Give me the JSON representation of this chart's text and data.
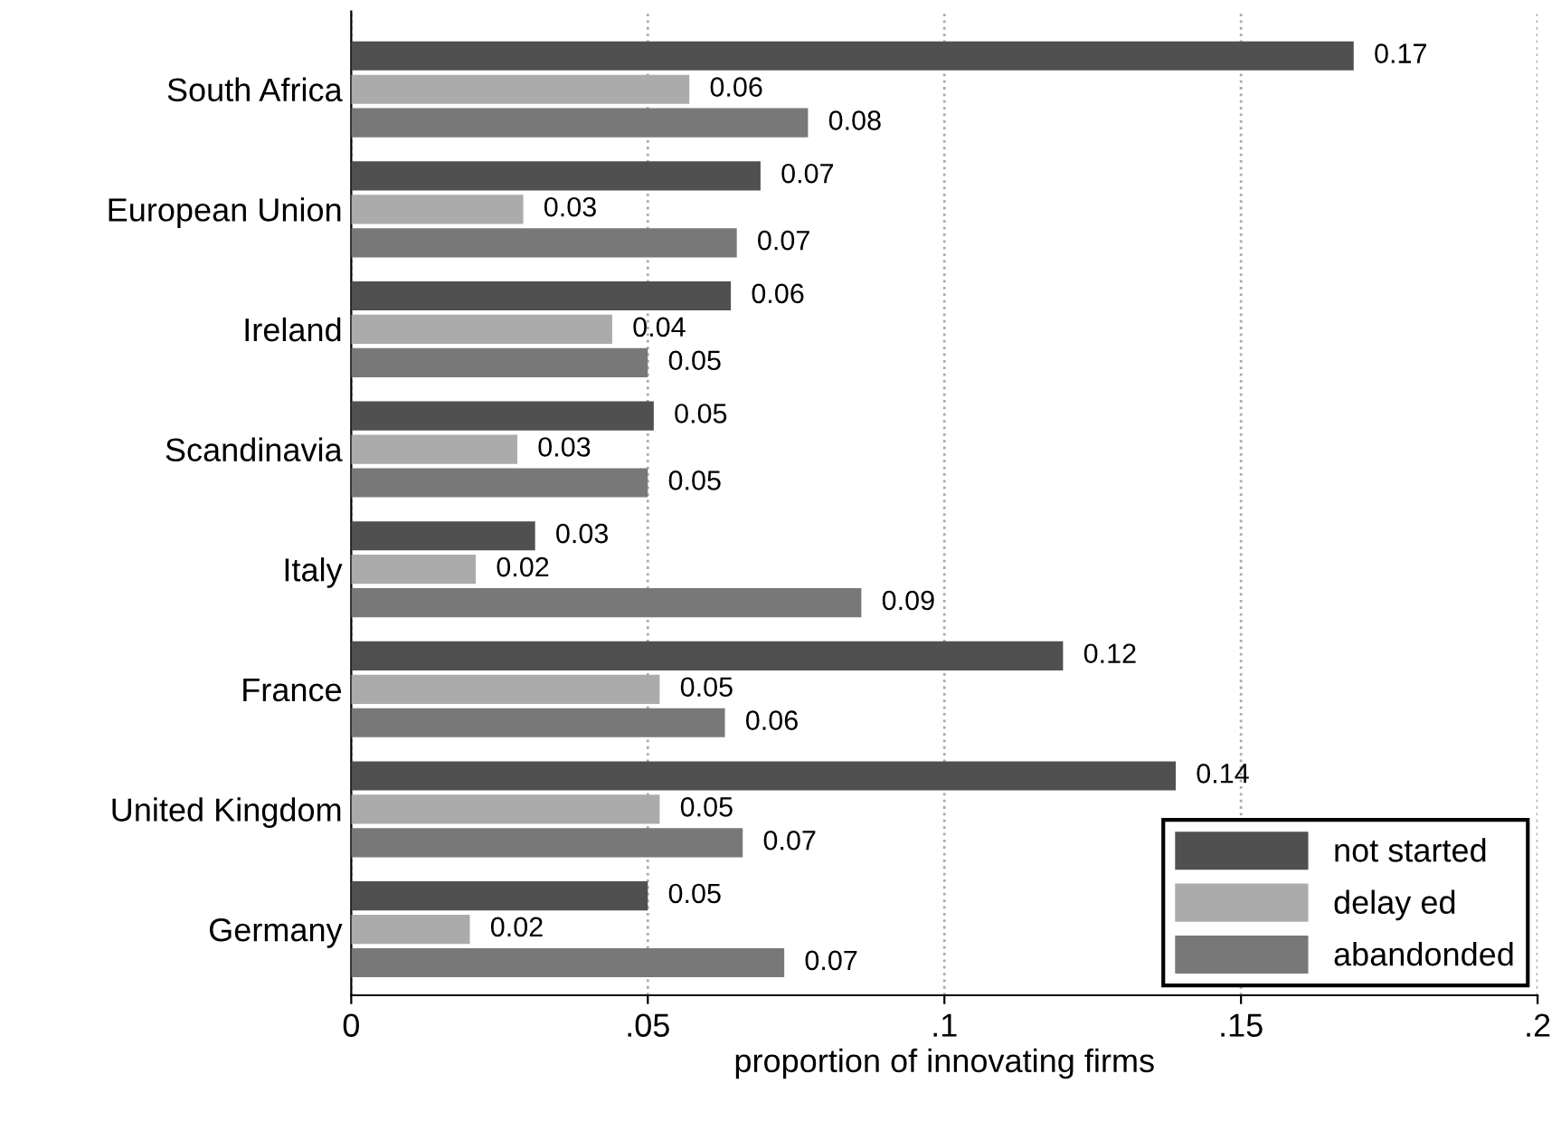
{
  "chart_data": {
    "type": "bar",
    "orientation": "horizontal",
    "xlabel": "proportion of innovating firms",
    "categories": [
      "South Africa",
      "European Union",
      "Ireland",
      "Scandinavia",
      "Italy",
      "France",
      "United Kingdom",
      "Germany"
    ],
    "series": [
      {
        "name": "not started",
        "color": "#505050",
        "values": [
          0.169,
          0.069,
          0.064,
          0.051,
          0.031,
          0.12,
          0.139,
          0.05
        ],
        "value_labels": [
          "0.17",
          "0.07",
          "0.06",
          "0.05",
          "0.03",
          "0.12",
          "0.14",
          "0.05"
        ]
      },
      {
        "name": "delay ed",
        "color": "#ababab",
        "values": [
          0.057,
          0.029,
          0.044,
          0.028,
          0.021,
          0.052,
          0.052,
          0.02
        ],
        "value_labels": [
          "0.06",
          "0.03",
          "0.04",
          "0.03",
          "0.02",
          "0.05",
          "0.05",
          "0.02"
        ]
      },
      {
        "name": "abandonded",
        "color": "#787878",
        "values": [
          0.077,
          0.065,
          0.05,
          0.05,
          0.086,
          0.063,
          0.066,
          0.073
        ],
        "value_labels": [
          "0.08",
          "0.07",
          "0.05",
          "0.05",
          "0.09",
          "0.06",
          "0.07",
          "0.07"
        ]
      }
    ],
    "xlim": [
      0,
      0.2
    ],
    "xticks": [
      {
        "value": 0,
        "label": "0"
      },
      {
        "value": 0.05,
        "label": ".05"
      },
      {
        "value": 0.1,
        "label": ".1"
      },
      {
        "value": 0.15,
        "label": ".15"
      },
      {
        "value": 0.2,
        "label": ".2"
      }
    ],
    "grid": "x",
    "legend": "bottom right"
  }
}
